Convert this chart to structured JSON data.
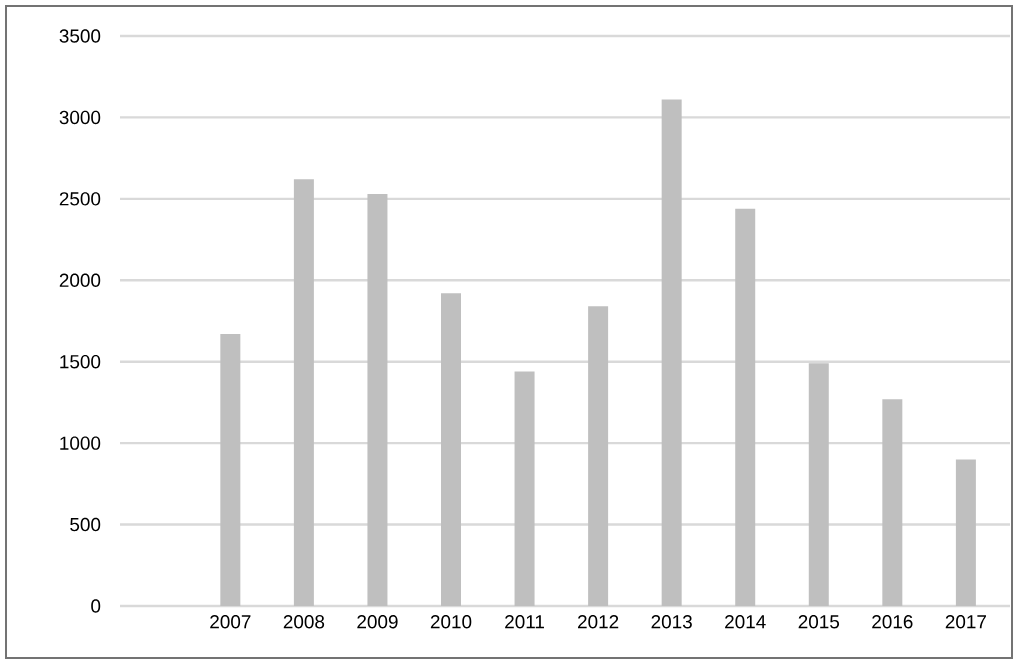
{
  "chart_data": {
    "type": "bar",
    "categories": [
      "2007",
      "2008",
      "2009",
      "2010",
      "2011",
      "2012",
      "2013",
      "2014",
      "2015",
      "2016",
      "2017"
    ],
    "values": [
      1670,
      2620,
      2530,
      1920,
      1440,
      1840,
      3110,
      2440,
      1490,
      1270,
      900
    ],
    "color": "#bfbfbf",
    "ylim": [
      0,
      3500
    ],
    "yticks": [
      0,
      500,
      1000,
      1500,
      2000,
      2500,
      3000,
      3500
    ],
    "grid": "y"
  }
}
